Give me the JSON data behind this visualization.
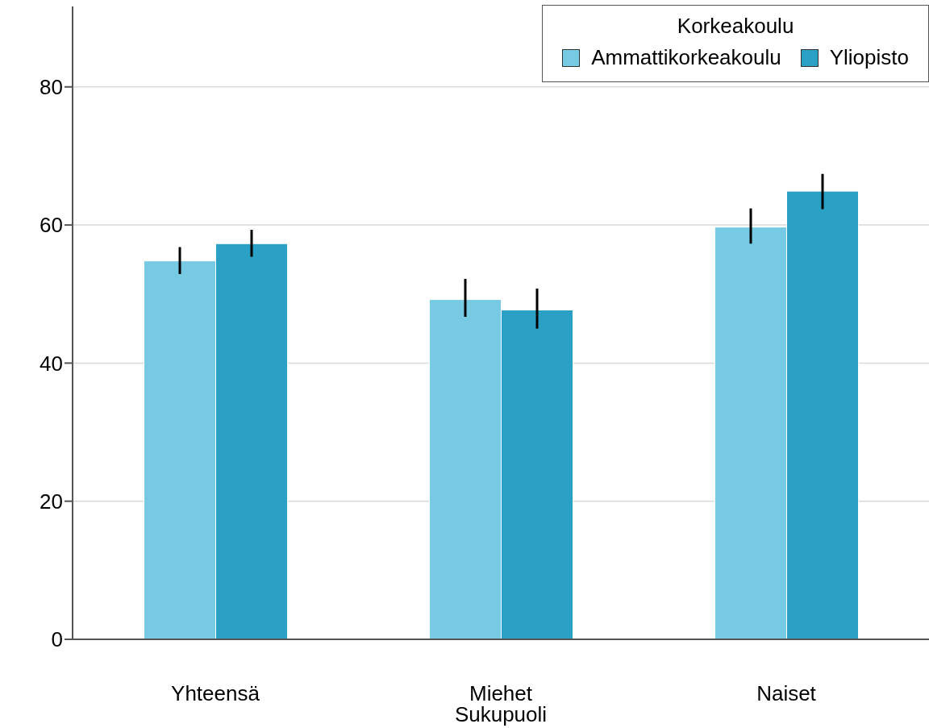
{
  "chart_data": {
    "type": "bar",
    "xlabel": "Sukupuoli",
    "legend_title": "Korkeakoulu",
    "categories": [
      "Yhteensä",
      "Miehet",
      "Naiset"
    ],
    "series": [
      {
        "name": "Ammattikorkeakoulu",
        "color": "#76cae3",
        "values": [
          54.8,
          49.2,
          59.7
        ],
        "errors": [
          [
            52.9,
            56.8
          ],
          [
            46.7,
            52.2
          ],
          [
            57.3,
            62.4
          ]
        ]
      },
      {
        "name": "Yliopisto",
        "color": "#29a0c4",
        "values": [
          57.3,
          47.7,
          64.9
        ],
        "errors": [
          [
            55.4,
            59.3
          ],
          [
            45.0,
            50.8
          ],
          [
            62.3,
            67.4
          ]
        ]
      }
    ],
    "ylim": [
      0,
      92
    ],
    "yticks": [
      0,
      20,
      40,
      60,
      80
    ],
    "grid": "y",
    "legend": "top right"
  }
}
